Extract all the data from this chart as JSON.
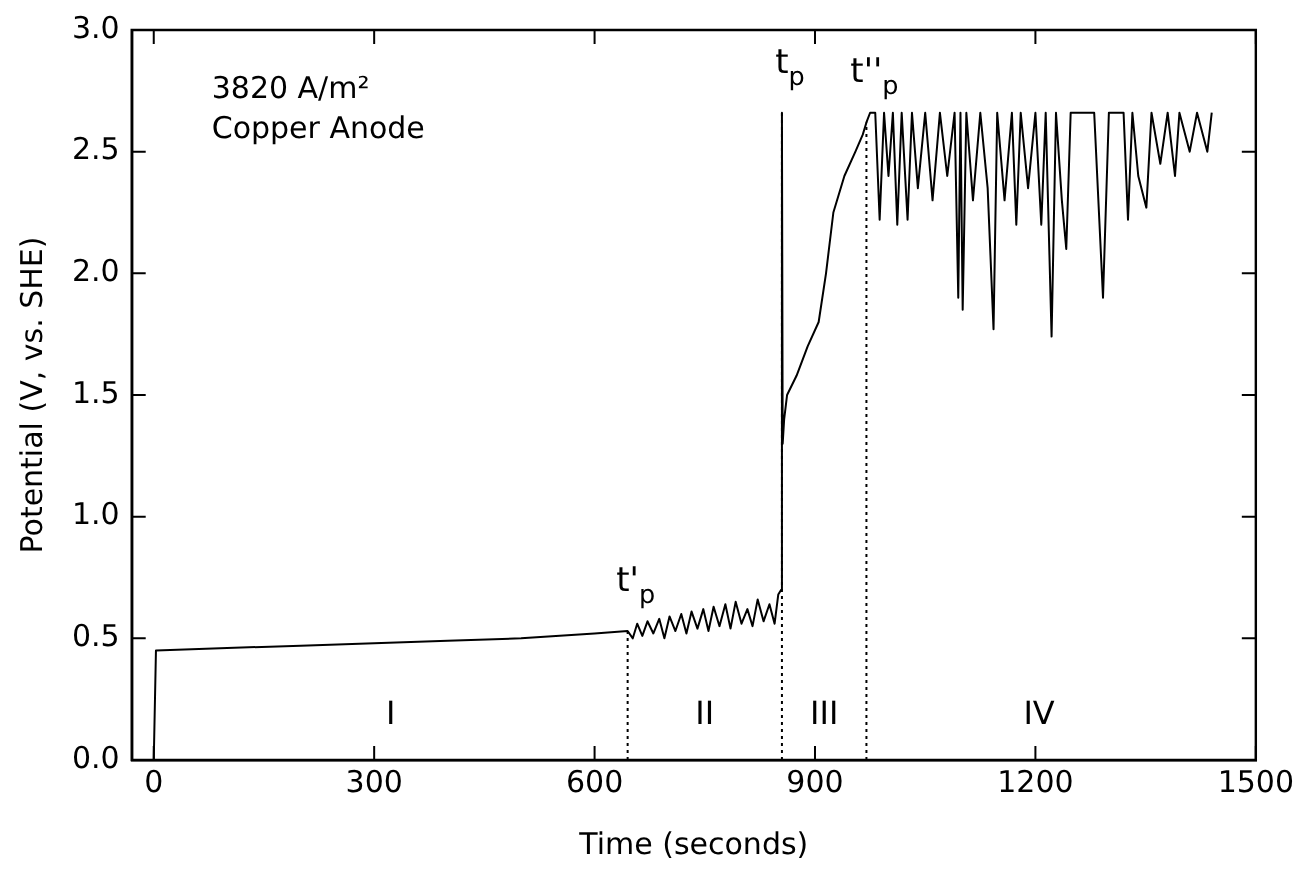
{
  "chart_data": {
    "type": "line",
    "xlabel": "Time (seconds)",
    "ylabel": "Potential (V, vs. SHE)",
    "xlim": [
      -30,
      1500
    ],
    "xticks": [
      0,
      300,
      600,
      900,
      1200,
      1500
    ],
    "ylim": [
      0,
      3
    ],
    "yticks": [
      {
        "value": 0,
        "label": "0.0"
      },
      {
        "value": 0.5,
        "label": "0.5"
      },
      {
        "value": 1,
        "label": "1.0"
      },
      {
        "value": 1.5,
        "label": "1.5"
      },
      {
        "value": 2,
        "label": "2.0"
      },
      {
        "value": 2.5,
        "label": "2.5"
      },
      {
        "value": 3,
        "label": "3.0"
      }
    ],
    "grid": false,
    "legend": false,
    "marker": "none",
    "line_style": "solid",
    "series": [
      {
        "color": "#000000",
        "x": [
          0,
          3,
          100,
          200,
          300,
          400,
          500,
          600,
          645,
          652,
          658,
          665,
          672,
          680,
          688,
          695,
          702,
          710,
          718,
          725,
          732,
          740,
          748,
          755,
          762,
          770,
          778,
          785,
          792,
          800,
          808,
          815,
          822,
          830,
          838,
          845,
          850,
          854,
          855,
          856,
          858,
          862,
          875,
          890,
          905,
          915,
          925,
          940,
          955,
          965,
          970,
          975,
          982,
          988,
          994,
          1000,
          1006,
          1012,
          1018,
          1026,
          1032,
          1040,
          1050,
          1060,
          1070,
          1080,
          1090,
          1095,
          1098,
          1101,
          1106,
          1115,
          1125,
          1135,
          1143,
          1148,
          1158,
          1168,
          1174,
          1180,
          1190,
          1200,
          1208,
          1214,
          1222,
          1228,
          1236,
          1242,
          1248,
          1260,
          1270,
          1280,
          1292,
          1300,
          1310,
          1320,
          1326,
          1332,
          1340,
          1351,
          1358,
          1370,
          1380,
          1390,
          1396,
          1410,
          1420,
          1434,
          1440
        ],
        "values": [
          0,
          0.45,
          0.46,
          0.47,
          0.48,
          0.49,
          0.5,
          0.52,
          0.53,
          0.5,
          0.56,
          0.51,
          0.57,
          0.52,
          0.58,
          0.5,
          0.59,
          0.53,
          0.6,
          0.52,
          0.61,
          0.54,
          0.62,
          0.53,
          0.63,
          0.55,
          0.64,
          0.54,
          0.65,
          0.56,
          0.62,
          0.55,
          0.66,
          0.57,
          0.64,
          0.56,
          0.68,
          0.7,
          2.66,
          1.3,
          1.4,
          1.5,
          1.58,
          1.7,
          1.8,
          2.0,
          2.25,
          2.4,
          2.5,
          2.57,
          2.62,
          2.66,
          2.66,
          2.22,
          2.66,
          2.4,
          2.66,
          2.2,
          2.66,
          2.22,
          2.66,
          2.35,
          2.66,
          2.3,
          2.66,
          2.4,
          2.66,
          1.9,
          2.66,
          1.85,
          2.66,
          2.3,
          2.66,
          2.35,
          1.77,
          2.66,
          2.3,
          2.66,
          2.2,
          2.66,
          2.35,
          2.66,
          2.2,
          2.66,
          1.74,
          2.66,
          2.3,
          2.1,
          2.66,
          2.66,
          2.66,
          2.66,
          1.9,
          2.66,
          2.66,
          2.66,
          2.22,
          2.66,
          2.4,
          2.27,
          2.66,
          2.45,
          2.66,
          2.4,
          2.66,
          2.5,
          2.66,
          2.5,
          2.66
        ]
      }
    ],
    "ref_lines": [
      {
        "axis": "x",
        "value": 645,
        "line_style": "dotted",
        "label": "t'$_{p}$"
      },
      {
        "axis": "x",
        "value": 855,
        "line_style": "dotted",
        "label": "t$_{p}$"
      },
      {
        "axis": "x",
        "value": 970,
        "line_style": "dotted",
        "label": "t''$_{p}$"
      }
    ],
    "annotations": [
      "3820 A/m²",
      "Copper Anode",
      "I",
      "II",
      "III",
      "IV"
    ]
  }
}
